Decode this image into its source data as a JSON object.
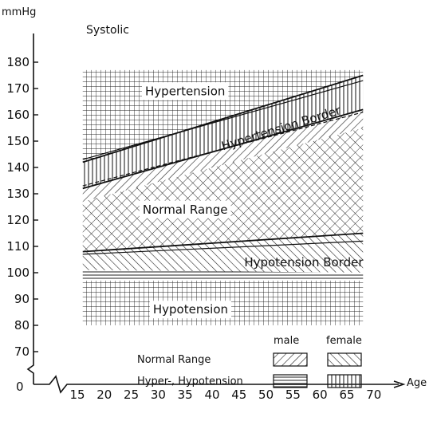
{
  "chart_data": {
    "type": "area",
    "title": "Systolic",
    "ylabel": "mmHg",
    "xlabel": "Age",
    "xlim": [
      15,
      70
    ],
    "ylim": [
      70,
      180
    ],
    "x_ticks": [
      "15",
      "20",
      "25",
      "30",
      "35",
      "40",
      "45",
      "50",
      "55",
      "60",
      "65",
      "70"
    ],
    "y_ticks": [
      "180",
      "170",
      "160",
      "150",
      "140",
      "130",
      "120",
      "110",
      "100",
      "90",
      "80",
      "70"
    ],
    "origin_label": "0",
    "x_domain": [
      16,
      68
    ],
    "boundaries": {
      "chart_top": [
        [
          16,
          177
        ],
        [
          68,
          177
        ]
      ],
      "hypertension_lower_male": [
        [
          16,
          142
        ],
        [
          68,
          175
        ]
      ],
      "hypertension_lower_female": [
        [
          16,
          143
        ],
        [
          68,
          173
        ]
      ],
      "border_lower_male": [
        [
          16,
          132
        ],
        [
          68,
          162
        ]
      ],
      "border_lower_female": [
        [
          16,
          133
        ],
        [
          68,
          161
        ]
      ],
      "normal_lower_male": [
        [
          16,
          108
        ],
        [
          68,
          115
        ]
      ],
      "normal_lower_female": [
        [
          16,
          107
        ],
        [
          68,
          112
        ]
      ],
      "hypotension_border_lower": [
        [
          16,
          101
        ],
        [
          68,
          100
        ]
      ],
      "hypotension_upper": [
        [
          16,
          97
        ],
        [
          68,
          97
        ]
      ],
      "chart_bottom": [
        [
          16,
          80
        ],
        [
          68,
          80
        ]
      ]
    },
    "regions": [
      {
        "name": "Hypertension",
        "label": "Hypertension",
        "label_at": [
          35,
          169
        ]
      },
      {
        "name": "Hypertension Border",
        "label": "Hypertension Border",
        "label_at": [
          53,
          155
        ]
      },
      {
        "name": "Normal Range",
        "label": "Normal Range",
        "label_at": [
          35,
          124
        ]
      },
      {
        "name": "Hypotension Border",
        "label": "Hypotension Border",
        "label_at": [
          57,
          104
        ]
      },
      {
        "name": "Hypotension",
        "label": "Hypotension",
        "label_at": [
          36,
          86
        ]
      }
    ],
    "legend": {
      "col_male": "male",
      "col_female": "female",
      "rows": [
        {
          "label": "Normal Range",
          "male_pattern": "diag-right",
          "female_pattern": "diag-left"
        },
        {
          "label": "Hyper-, Hypotension",
          "male_pattern": "horizontal",
          "female_pattern": "vertical"
        }
      ]
    }
  }
}
